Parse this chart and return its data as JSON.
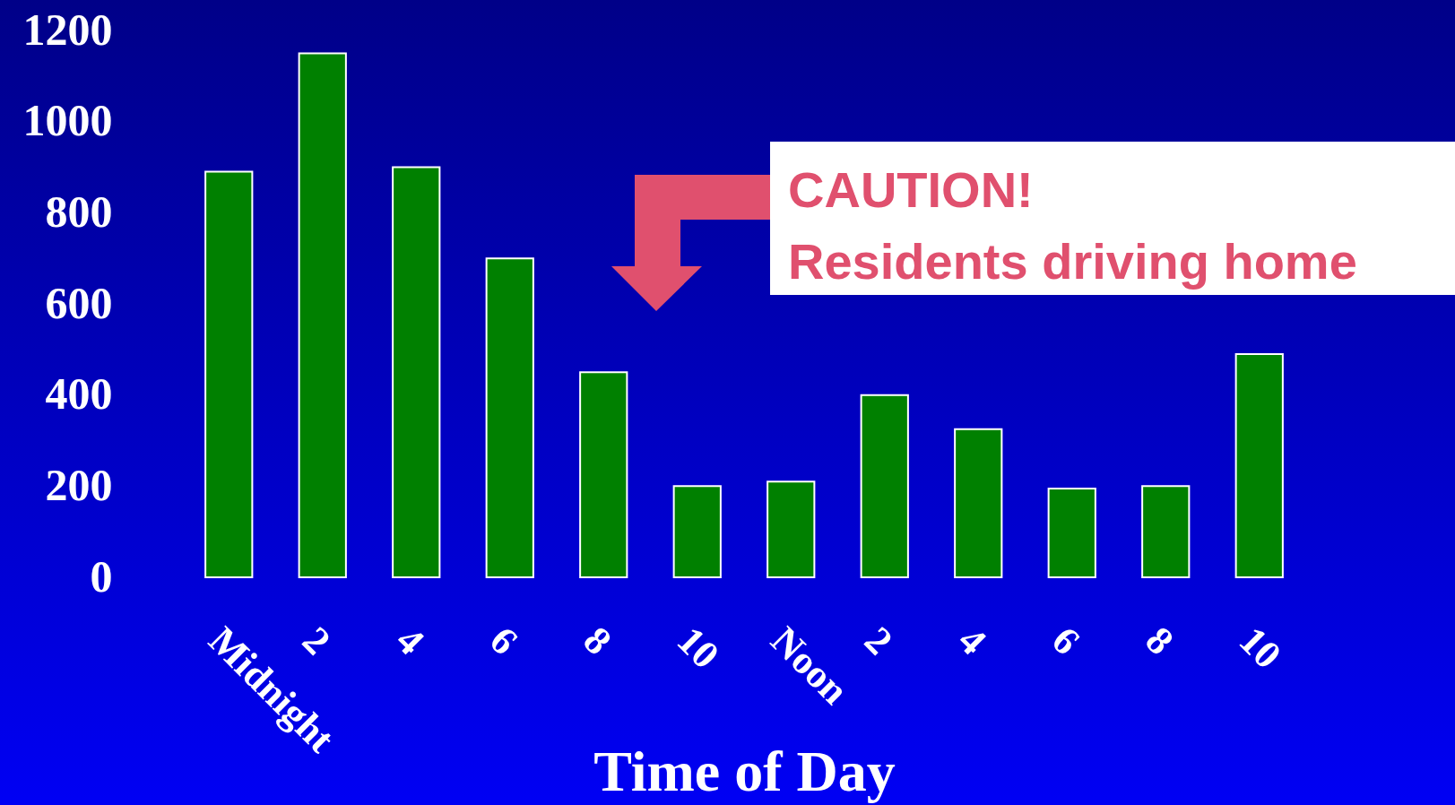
{
  "chart_data": {
    "type": "bar",
    "xlabel": "Time of Day",
    "categories": [
      "Midnight",
      "2",
      "4",
      "6",
      "8",
      "10",
      "Noon",
      "2",
      "4",
      "6",
      "8",
      "10"
    ],
    "values": [
      890,
      1150,
      900,
      700,
      450,
      200,
      210,
      400,
      325,
      195,
      200,
      490
    ],
    "color": "#008000",
    "ylim": [
      0,
      1200
    ],
    "yticks": [
      0,
      200,
      400,
      600,
      800,
      1000,
      1200
    ],
    "annotations": [
      "CAUTION!",
      "Residents driving home"
    ]
  }
}
